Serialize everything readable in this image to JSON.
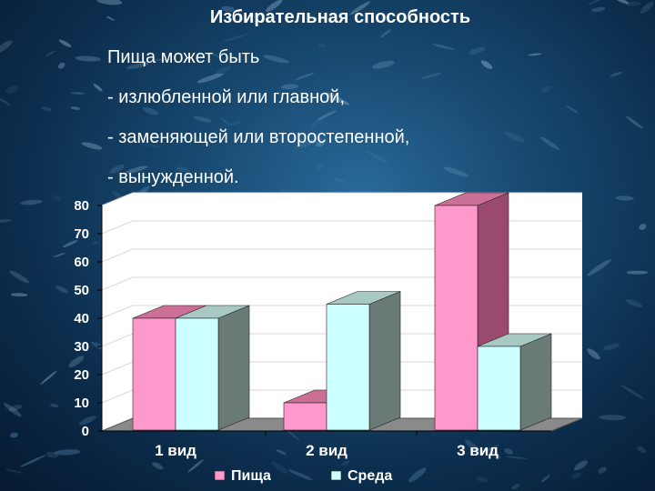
{
  "slide": {
    "title": "Избирательная способность",
    "bullets": [
      "Пища может быть",
      "- излюбленной или главной,",
      "- заменяющей или второстепенной,",
      "- вынужденной."
    ]
  },
  "colors": {
    "series1_front": "#ff99cc",
    "series1_side": "#9a4a6c",
    "series1_top": "#cc6f96",
    "series2_front": "#ccffff",
    "series2_side": "#6a7a74",
    "series2_top": "#a8c8c4",
    "axis": "#000000",
    "grid": "#d8d8d8"
  },
  "chart_data": {
    "type": "bar",
    "categories": [
      "1 вид",
      "2 вид",
      "3 вид"
    ],
    "series": [
      {
        "name": "Пища",
        "values": [
          40,
          10,
          80
        ]
      },
      {
        "name": "Среда",
        "values": [
          40,
          45,
          30
        ]
      }
    ],
    "ylim": [
      0,
      80
    ],
    "yticks": [
      "0",
      "10",
      "20",
      "30",
      "40",
      "50",
      "60",
      "70",
      "80"
    ],
    "grid": true,
    "legend_position": "bottom",
    "three_d": true
  }
}
